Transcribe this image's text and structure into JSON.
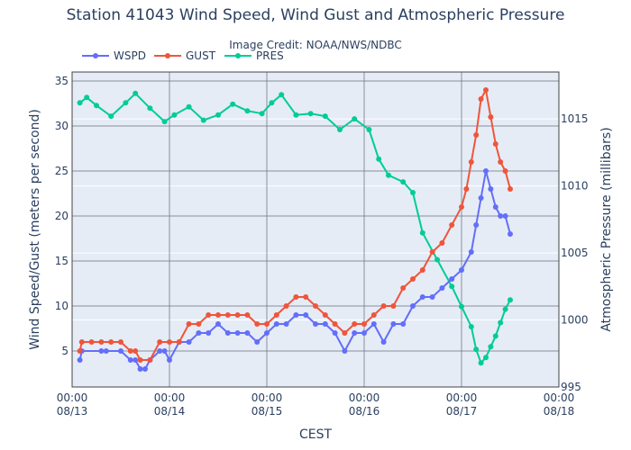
{
  "chart_data": {
    "type": "line",
    "title": "Station 41043 Wind Speed, Wind Gust and Atmospheric Pressure",
    "subtitle": "Image Credit: NOAA/NWS/NDBC",
    "xlabel": "CEST",
    "ylabel": "Wind Speed/Gust (meters per second)",
    "y2label": "Atmospheric Pressure (millibars)",
    "xticks": [
      {
        "day": 0,
        "time": "00:00",
        "date": "08/13"
      },
      {
        "day": 1,
        "time": "00:00",
        "date": "08/14"
      },
      {
        "day": 2,
        "time": "00:00",
        "date": "08/15"
      },
      {
        "day": 3,
        "time": "00:00",
        "date": "08/16"
      },
      {
        "day": 4,
        "time": "00:00",
        "date": "08/17"
      },
      {
        "day": 5,
        "time": "00:00",
        "date": "08/18"
      }
    ],
    "xlim": [
      0,
      5
    ],
    "ylim": [
      1,
      36
    ],
    "yticks": [
      5,
      10,
      15,
      20,
      25,
      30,
      35
    ],
    "y2lim": [
      995,
      1018.5
    ],
    "y2ticks": [
      995,
      1000,
      1005,
      1010,
      1015
    ],
    "legend_position": "top-left",
    "grid": true,
    "series": [
      {
        "name": "WSPD",
        "axis": "left",
        "color": "#636efa",
        "x": [
          0.08,
          0.1,
          0.3,
          0.35,
          0.5,
          0.6,
          0.65,
          0.7,
          0.75,
          0.8,
          0.9,
          0.95,
          1.0,
          1.1,
          1.2,
          1.3,
          1.4,
          1.5,
          1.6,
          1.7,
          1.8,
          1.9,
          2.0,
          2.1,
          2.2,
          2.3,
          2.4,
          2.5,
          2.6,
          2.7,
          2.8,
          2.9,
          3.0,
          3.1,
          3.2,
          3.3,
          3.4,
          3.5,
          3.6,
          3.7,
          3.8,
          3.9,
          4.0,
          4.1,
          4.15,
          4.2,
          4.25,
          4.3,
          4.35,
          4.4,
          4.45,
          4.5
        ],
        "y": [
          4,
          5,
          5,
          5,
          5,
          4,
          4,
          3,
          3,
          4,
          5,
          5,
          4,
          6,
          6,
          7,
          7,
          8,
          7,
          7,
          7,
          6,
          7,
          8,
          8,
          9,
          9,
          8,
          8,
          7,
          5,
          7,
          7,
          8,
          6,
          8,
          8,
          10,
          11,
          11,
          12,
          13,
          14,
          16,
          19,
          22,
          25,
          23,
          21,
          20,
          20,
          18
        ]
      },
      {
        "name": "GUST",
        "axis": "left",
        "color": "#ef553b",
        "x": [
          0.08,
          0.1,
          0.2,
          0.3,
          0.4,
          0.5,
          0.6,
          0.65,
          0.7,
          0.8,
          0.9,
          1.0,
          1.1,
          1.2,
          1.3,
          1.4,
          1.5,
          1.6,
          1.7,
          1.8,
          1.9,
          2.0,
          2.1,
          2.2,
          2.3,
          2.4,
          2.5,
          2.6,
          2.7,
          2.8,
          2.9,
          3.0,
          3.1,
          3.2,
          3.3,
          3.4,
          3.5,
          3.6,
          3.7,
          3.8,
          3.9,
          4.0,
          4.05,
          4.1,
          4.15,
          4.2,
          4.25,
          4.3,
          4.35,
          4.4,
          4.45,
          4.5
        ],
        "y": [
          5,
          6,
          6,
          6,
          6,
          6,
          5,
          5,
          4,
          4,
          6,
          6,
          6,
          8,
          8,
          9,
          9,
          9,
          9,
          9,
          8,
          8,
          9,
          10,
          11,
          11,
          10,
          9,
          8,
          7,
          8,
          8,
          9,
          10,
          10,
          12,
          13,
          14,
          16,
          17,
          19,
          21,
          23,
          26,
          29,
          33,
          34,
          31,
          28,
          26,
          25,
          23
        ]
      },
      {
        "name": "PRES",
        "axis": "right",
        "color": "#00cc96",
        "x": [
          0.08,
          0.15,
          0.25,
          0.4,
          0.55,
          0.65,
          0.8,
          0.95,
          1.05,
          1.2,
          1.35,
          1.5,
          1.65,
          1.8,
          1.95,
          2.05,
          2.15,
          2.3,
          2.45,
          2.6,
          2.75,
          2.9,
          3.05,
          3.15,
          3.25,
          3.4,
          3.5,
          3.6,
          3.75,
          3.9,
          4.0,
          4.1,
          4.15,
          4.2,
          4.25,
          4.3,
          4.35,
          4.4,
          4.45,
          4.5
        ],
        "y": [
          1016.2,
          1016.6,
          1016.0,
          1015.2,
          1016.2,
          1016.9,
          1015.8,
          1014.8,
          1015.3,
          1015.9,
          1014.9,
          1015.3,
          1016.1,
          1015.6,
          1015.4,
          1016.2,
          1016.8,
          1015.3,
          1015.4,
          1015.2,
          1014.2,
          1015.0,
          1014.2,
          1012.0,
          1010.8,
          1010.3,
          1009.5,
          1006.5,
          1004.5,
          1002.5,
          1001.0,
          999.5,
          997.8,
          996.8,
          997.2,
          998.0,
          998.8,
          999.8,
          1000.8,
          1001.5
        ]
      }
    ]
  }
}
